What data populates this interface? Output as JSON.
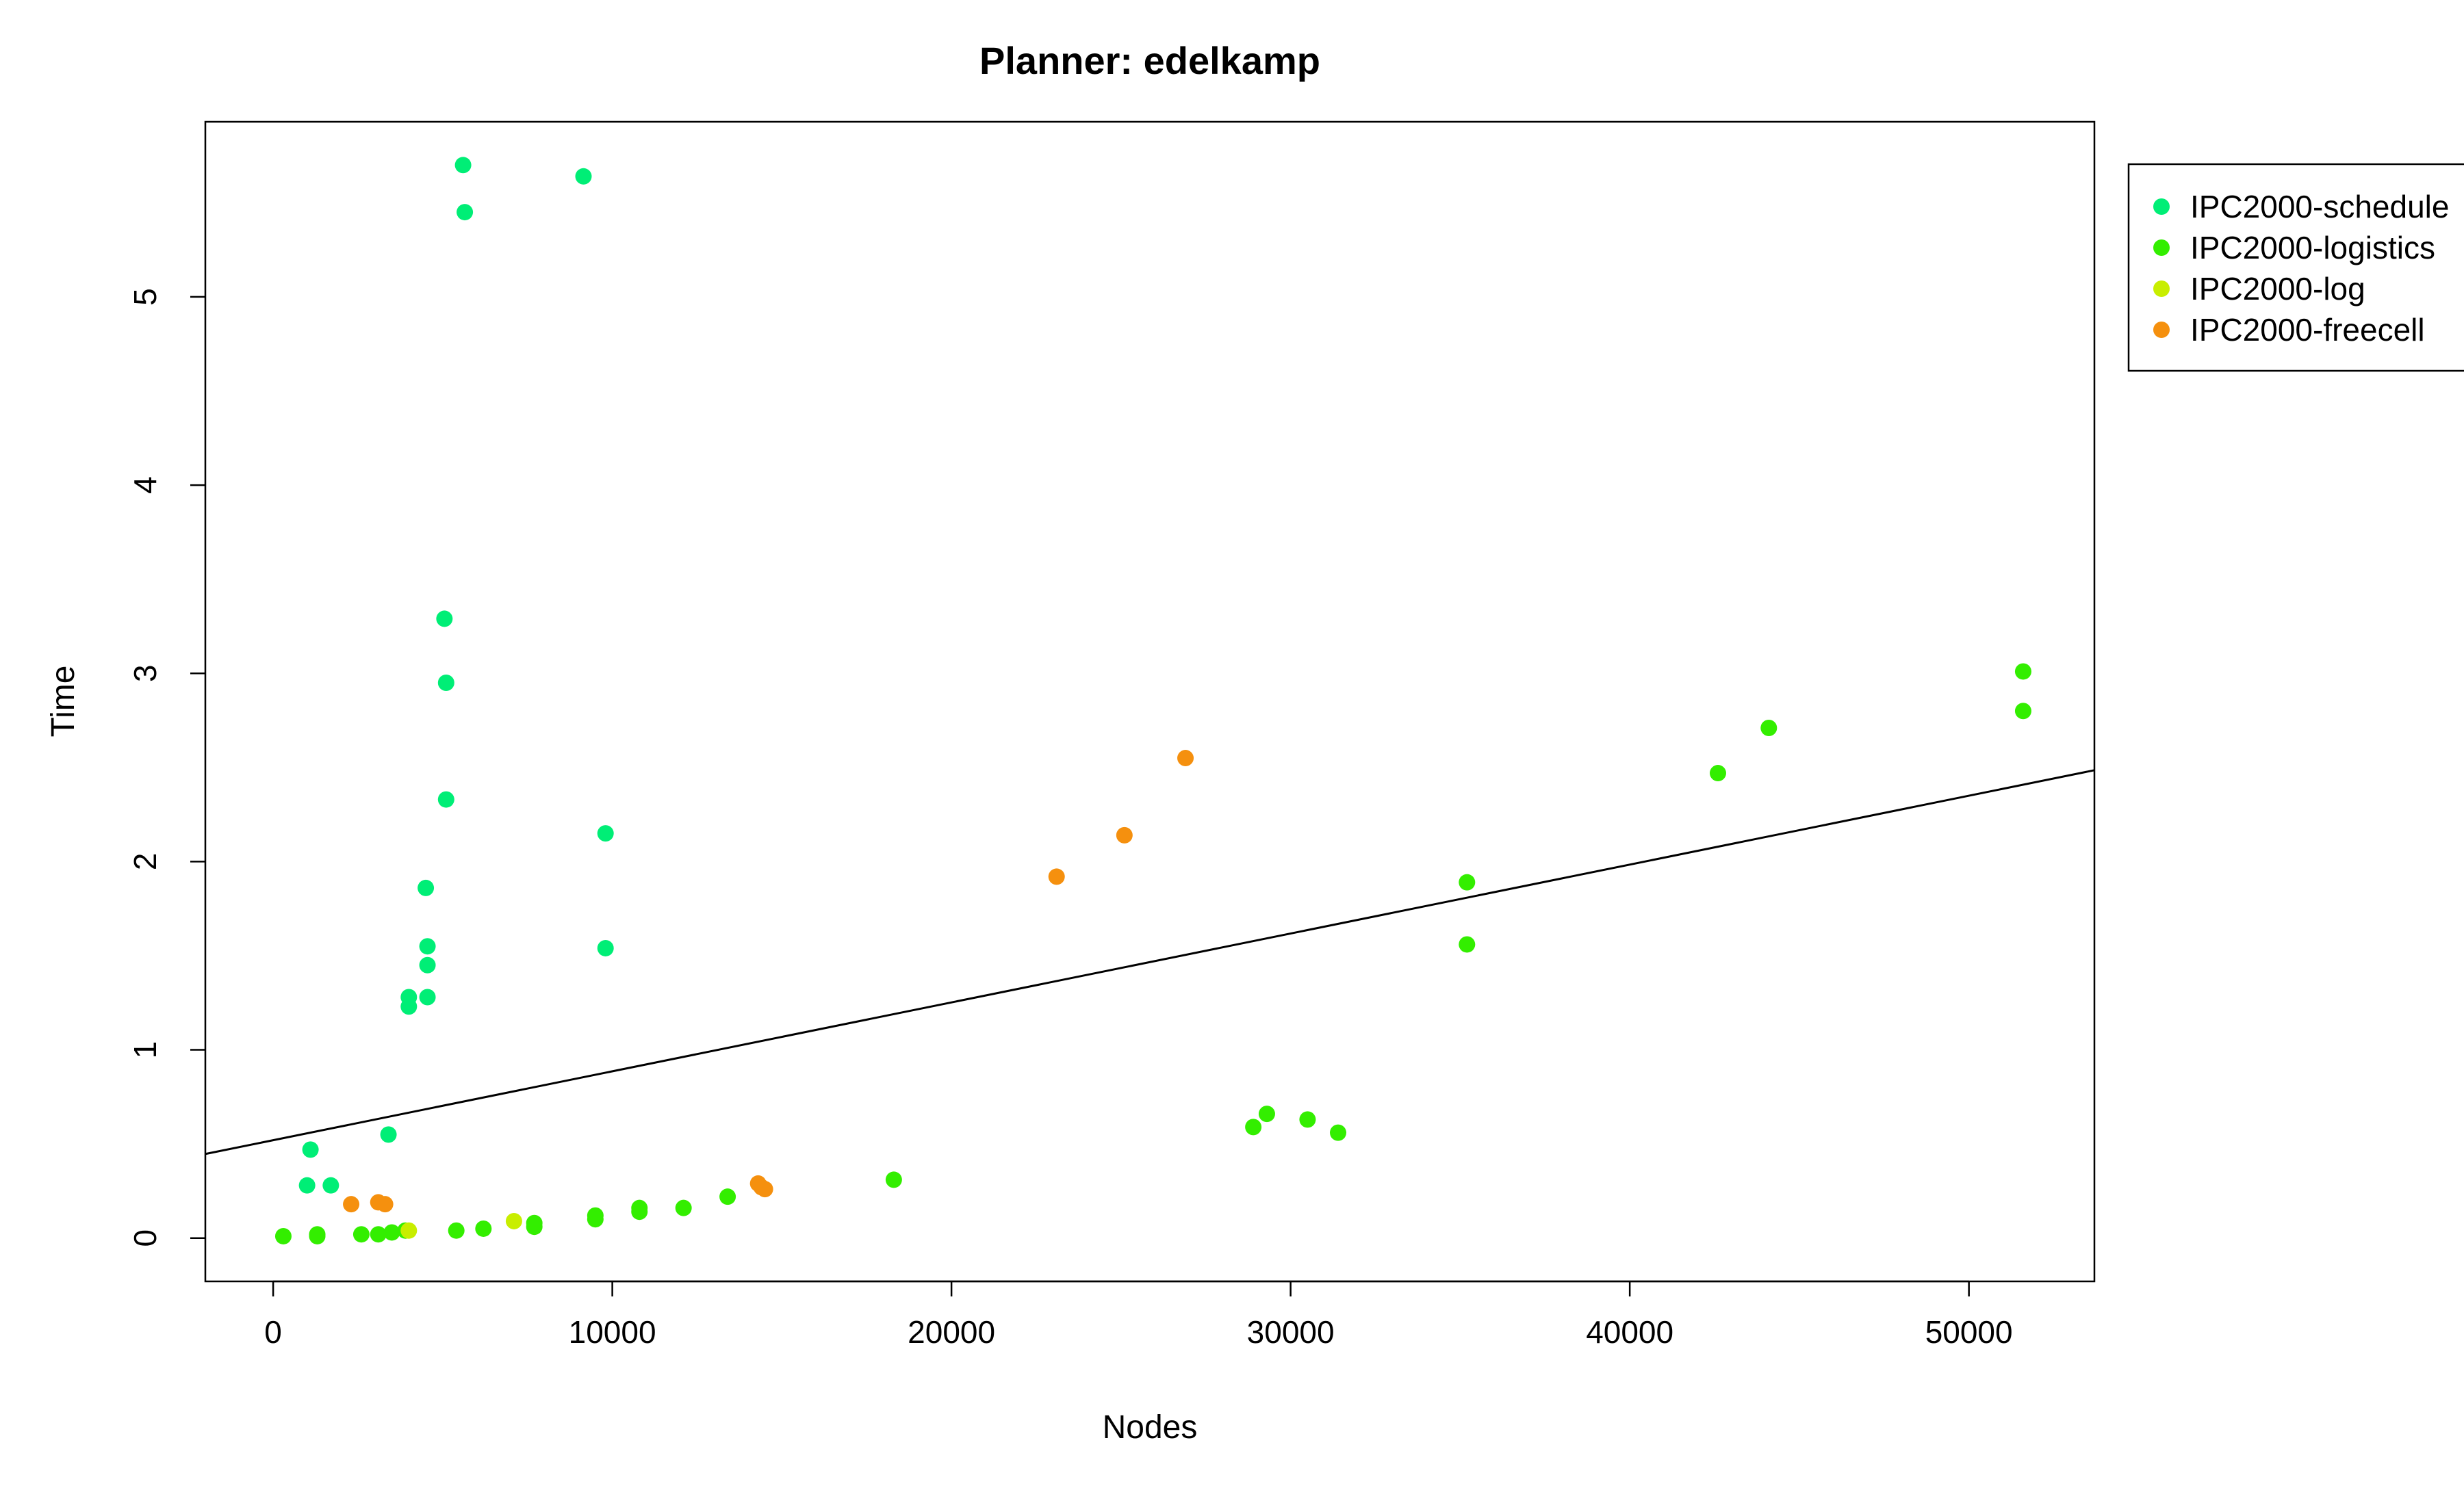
{
  "chart_data": {
    "type": "scatter",
    "title": "Planner: edelkamp",
    "xlabel": "Nodes",
    "ylabel": "Time",
    "xlim": [
      -2000,
      53700
    ],
    "ylim": [
      -0.23,
      5.93
    ],
    "x_ticks": [
      0,
      10000,
      20000,
      30000,
      40000,
      50000
    ],
    "y_ticks": [
      0,
      1,
      2,
      3,
      4,
      5
    ],
    "x_tick_labels": [
      "0",
      "10000",
      "20000",
      "30000",
      "40000",
      "50000"
    ],
    "y_tick_labels": [
      "0",
      "1",
      "2",
      "3",
      "4",
      "5"
    ],
    "grid": false,
    "legend_position": "top-right",
    "trend_line": {
      "intercept": 0.52,
      "slope": 3.66e-05
    },
    "series": [
      {
        "name": "IPC2000-schedule",
        "color": "#00ee76",
        "points": [
          [
            5600,
            5.7
          ],
          [
            5650,
            5.45
          ],
          [
            9150,
            5.64
          ],
          [
            5050,
            3.29
          ],
          [
            5100,
            2.95
          ],
          [
            5100,
            2.33
          ],
          [
            9800,
            2.15
          ],
          [
            9800,
            1.54
          ],
          [
            4500,
            1.86
          ],
          [
            4550,
            1.55
          ],
          [
            4550,
            1.45
          ],
          [
            4550,
            1.28
          ],
          [
            4000,
            1.28
          ],
          [
            4000,
            1.23
          ],
          [
            3400,
            0.55
          ],
          [
            1100,
            0.47
          ],
          [
            1000,
            0.28
          ],
          [
            1700,
            0.28
          ]
        ]
      },
      {
        "name": "IPC2000-logistics",
        "color": "#33ee00",
        "points": [
          [
            51600,
            3.01
          ],
          [
            51600,
            2.8
          ],
          [
            44100,
            2.71
          ],
          [
            42600,
            2.47
          ],
          [
            35200,
            1.89
          ],
          [
            35200,
            1.56
          ],
          [
            29300,
            0.66
          ],
          [
            30500,
            0.63
          ],
          [
            28900,
            0.59
          ],
          [
            31400,
            0.56
          ],
          [
            18300,
            0.31
          ],
          [
            13400,
            0.22
          ],
          [
            12100,
            0.16
          ],
          [
            10800,
            0.16
          ],
          [
            10800,
            0.14
          ],
          [
            9500,
            0.12
          ],
          [
            9500,
            0.1
          ],
          [
            7700,
            0.08
          ],
          [
            7700,
            0.06
          ],
          [
            6200,
            0.05
          ],
          [
            5400,
            0.04
          ],
          [
            3900,
            0.04
          ],
          [
            3500,
            0.03
          ],
          [
            3100,
            0.02
          ],
          [
            2600,
            0.02
          ],
          [
            1300,
            0.02
          ],
          [
            1300,
            0.01
          ],
          [
            300,
            0.01
          ]
        ]
      },
      {
        "name": "IPC2000-log",
        "color": "#c8ee00",
        "points": [
          [
            7100,
            0.09
          ],
          [
            4000,
            0.04
          ]
        ]
      },
      {
        "name": "IPC2000-freecell",
        "color": "#f5900e",
        "points": [
          [
            26900,
            2.55
          ],
          [
            25100,
            2.14
          ],
          [
            23100,
            1.92
          ],
          [
            14300,
            0.29
          ],
          [
            14400,
            0.27
          ],
          [
            14500,
            0.26
          ],
          [
            2300,
            0.18
          ],
          [
            3100,
            0.19
          ],
          [
            3300,
            0.18
          ]
        ]
      }
    ]
  }
}
